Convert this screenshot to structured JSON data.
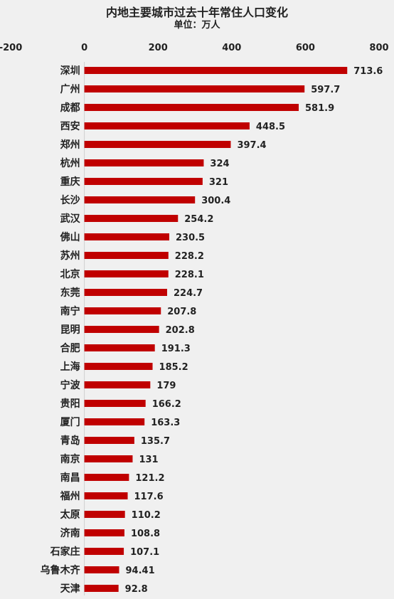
{
  "chart_data": {
    "type": "bar",
    "orientation": "horizontal",
    "title": "内地主要城市过去十年常住人口变化",
    "subtitle": "单位：万人",
    "xlim": [
      -200,
      800
    ],
    "x_ticks": [
      "-200",
      "0",
      "200",
      "400",
      "600",
      "800"
    ],
    "categories": [
      "深圳",
      "广州",
      "成都",
      "西安",
      "郑州",
      "杭州",
      "重庆",
      "长沙",
      "武汉",
      "佛山",
      "苏州",
      "北京",
      "东莞",
      "南宁",
      "昆明",
      "合肥",
      "上海",
      "宁波",
      "贵阳",
      "厦门",
      "青岛",
      "南京",
      "南昌",
      "福州",
      "太原",
      "济南",
      "石家庄",
      "乌鲁木齐",
      "天津"
    ],
    "values": [
      713.6,
      597.7,
      581.9,
      448.5,
      397.4,
      324,
      321,
      300.4,
      254.2,
      230.5,
      228.2,
      228.1,
      224.7,
      207.8,
      202.8,
      191.3,
      185.2,
      179,
      166.2,
      163.3,
      135.7,
      131,
      121.2,
      117.6,
      110.2,
      108.8,
      107.1,
      94.41,
      92.8
    ],
    "value_labels": [
      "713.6",
      "597.7",
      "581.9",
      "448.5",
      "397.4",
      "324",
      "321",
      "300.4",
      "254.2",
      "230.5",
      "228.2",
      "228.1",
      "224.7",
      "207.8",
      "202.8",
      "191.3",
      "185.2",
      "179",
      "166.2",
      "163.3",
      "135.7",
      "131",
      "121.2",
      "117.6",
      "110.2",
      "108.8",
      "107.1",
      "94.41",
      "92.8"
    ],
    "bar_color": "#c00000",
    "grid": false,
    "legend": "none"
  }
}
